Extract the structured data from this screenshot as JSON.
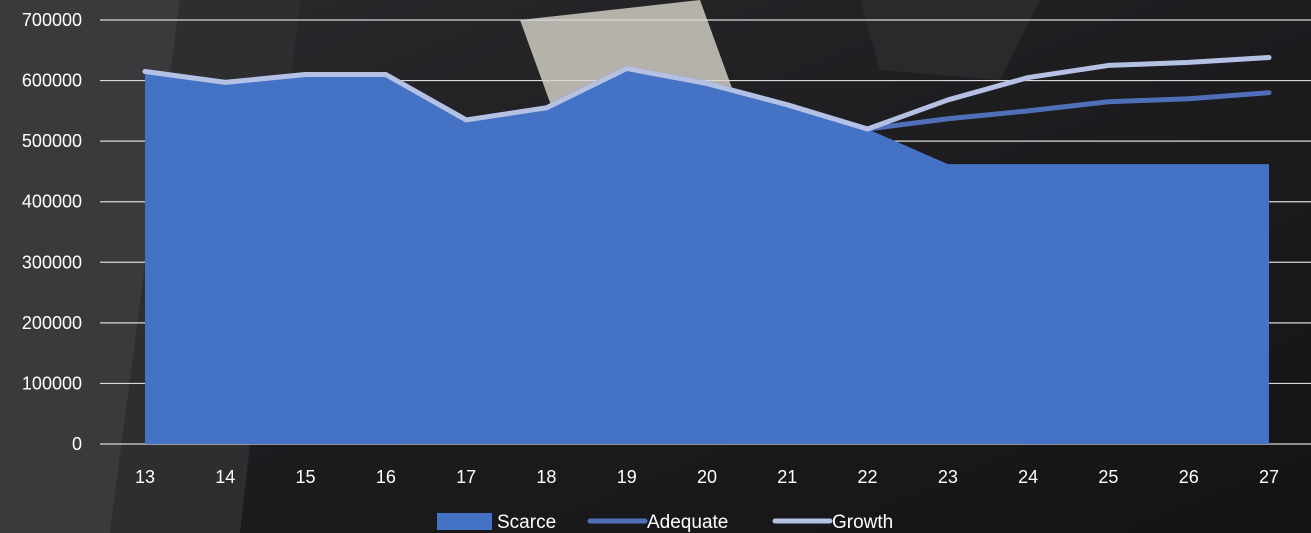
{
  "chart_data": {
    "type": "area",
    "title": "",
    "xlabel": "",
    "ylabel": "",
    "categories": [
      "13",
      "14",
      "15",
      "16",
      "17",
      "18",
      "19",
      "20",
      "21",
      "22",
      "23",
      "24",
      "25",
      "26",
      "27"
    ],
    "ylim": [
      0,
      700000
    ],
    "yticks": [
      "0",
      "100000",
      "200000",
      "300000",
      "400000",
      "500000",
      "600000",
      "700000"
    ],
    "grid": true,
    "legend_position": "bottom",
    "series": [
      {
        "name": "Scarce",
        "kind": "area",
        "color": "#4472c4",
        "values": [
          615000,
          597000,
          610000,
          610000,
          535000,
          555000,
          620000,
          595000,
          560000,
          520000,
          462000,
          462000,
          462000,
          462000,
          462000
        ]
      },
      {
        "name": "Adequate",
        "kind": "line",
        "color": "#4f6fb8",
        "values": [
          615000,
          597000,
          610000,
          610000,
          535000,
          555000,
          620000,
          595000,
          560000,
          520000,
          537000,
          550000,
          565000,
          570000,
          580000
        ]
      },
      {
        "name": "Growth",
        "kind": "line",
        "color": "#b4c1e4",
        "values": [
          615000,
          597000,
          610000,
          610000,
          535000,
          555000,
          620000,
          595000,
          560000,
          520000,
          568000,
          605000,
          625000,
          630000,
          638000
        ]
      }
    ]
  }
}
